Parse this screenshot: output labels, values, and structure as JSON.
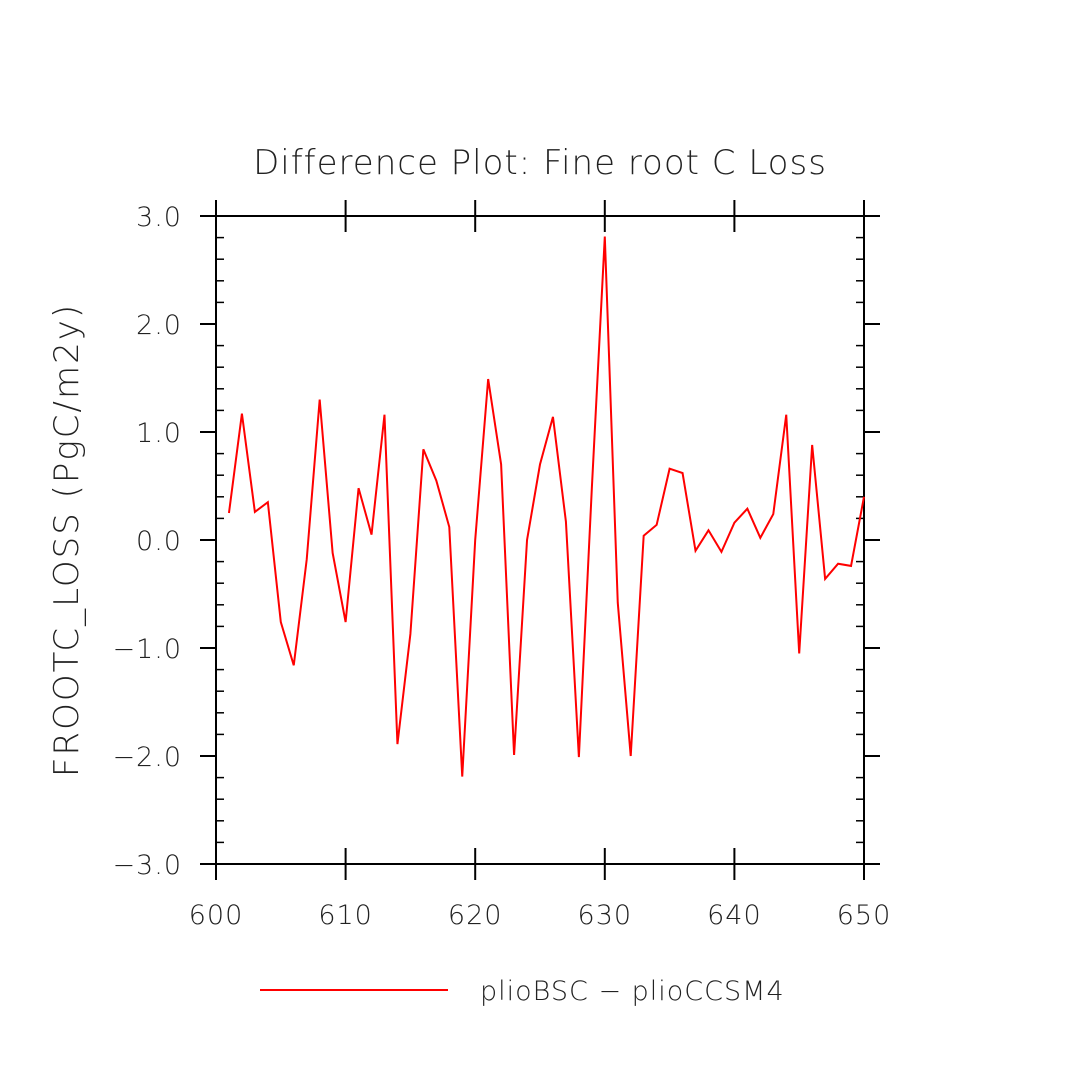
{
  "chart_data": {
    "type": "line",
    "title": "Difference Plot: Fine root C Loss",
    "xlabel": "",
    "ylabel": "FROOTC_LOSS  (PgC/m2y)",
    "xlim": [
      600,
      650
    ],
    "ylim": [
      -3.0,
      3.0
    ],
    "x_ticks": [
      600,
      610,
      620,
      630,
      640,
      650
    ],
    "x_tick_labels": [
      "600",
      "610",
      "620",
      "630",
      "640",
      "650"
    ],
    "y_ticks": [
      -3.0,
      -2.0,
      -1.0,
      0.0,
      1.0,
      2.0,
      3.0
    ],
    "y_tick_labels": [
      "−3.0",
      "−2.0",
      "−1.0",
      "0.0",
      "1.0",
      "2.0",
      "3.0"
    ],
    "grid": false,
    "legend_position": "bottom-center",
    "series": [
      {
        "name": "plioBSC − plioCCSM4",
        "color": "#ff0000",
        "x": [
          601,
          602,
          603,
          604,
          605,
          606,
          607,
          608,
          609,
          610,
          611,
          612,
          613,
          614,
          615,
          616,
          617,
          618,
          619,
          620,
          621,
          622,
          623,
          624,
          625,
          626,
          627,
          628,
          629,
          630,
          631,
          632,
          633,
          634,
          635,
          636,
          637,
          638,
          639,
          640,
          641,
          642,
          643,
          644,
          645,
          646,
          647,
          648,
          649,
          650
        ],
        "y": [
          0.25,
          1.17,
          0.26,
          0.35,
          -0.76,
          -1.16,
          -0.18,
          1.3,
          -0.12,
          -0.76,
          0.48,
          0.05,
          1.16,
          -1.89,
          -0.87,
          0.84,
          0.55,
          0.12,
          -2.19,
          0.0,
          1.49,
          0.7,
          -1.99,
          0.0,
          0.7,
          1.14,
          0.17,
          -2.01,
          0.48,
          2.81,
          -0.58,
          -2.0,
          0.04,
          0.14,
          0.66,
          0.62,
          -0.1,
          0.09,
          -0.11,
          0.16,
          0.29,
          0.02,
          0.24,
          1.16,
          -1.05,
          0.88,
          -0.36,
          -0.22,
          -0.24,
          0.4
        ]
      }
    ]
  },
  "colors": {
    "line": "#ff0000",
    "axis": "#000000",
    "text": "#222222",
    "background": "#ffffff"
  }
}
